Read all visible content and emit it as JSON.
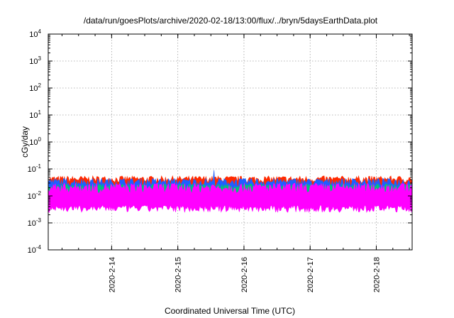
{
  "chart_data": {
    "type": "line",
    "title": "/data/run/goesPlots/archive/2020-02-18/13:00/flux/../bryn/5daysEarthData.plot",
    "xlabel": "Coordinated Universal Time (UTC)",
    "ylabel": "cGy/day",
    "yscale": "log",
    "ylim": [
      0.0001,
      10000
    ],
    "xlim": [
      "2020-02-13T01:00",
      "2020-02-18T13:00"
    ],
    "grid": true,
    "x_ticks": [
      "2020-2-14",
      "2020-2-15",
      "2020-2-16",
      "2020-2-17",
      "2020-2-18"
    ],
    "y_ticks": [
      {
        "value": 0.0001,
        "base": "10",
        "exp": "-4"
      },
      {
        "value": 0.001,
        "base": "10",
        "exp": "-3"
      },
      {
        "value": 0.01,
        "base": "10",
        "exp": "-2"
      },
      {
        "value": 0.1,
        "base": "10",
        "exp": "-1"
      },
      {
        "value": 1,
        "base": "10",
        "exp": "0"
      },
      {
        "value": 10,
        "base": "10",
        "exp": "1"
      },
      {
        "value": 100,
        "base": "10",
        "exp": "2"
      },
      {
        "value": 1000,
        "base": "10",
        "exp": "3"
      },
      {
        "value": 10000,
        "base": "10",
        "exp": "4"
      }
    ],
    "series": [
      {
        "color": "#ff2a00",
        "upper": [
          0.03,
          0.055
        ],
        "lower": 0.018
      },
      {
        "color": "#1f5fff",
        "upper": [
          0.022,
          0.045
        ],
        "lower": 0.012
      },
      {
        "color": "#00c47a",
        "upper": [
          0.018,
          0.028
        ],
        "lower": 0.007
      },
      {
        "color": "#ff00ff",
        "upper": [
          0.012,
          0.03
        ],
        "lower": 0.0035
      }
    ],
    "spike": {
      "date": "2020-02-15T13:00",
      "value": 0.09
    }
  }
}
